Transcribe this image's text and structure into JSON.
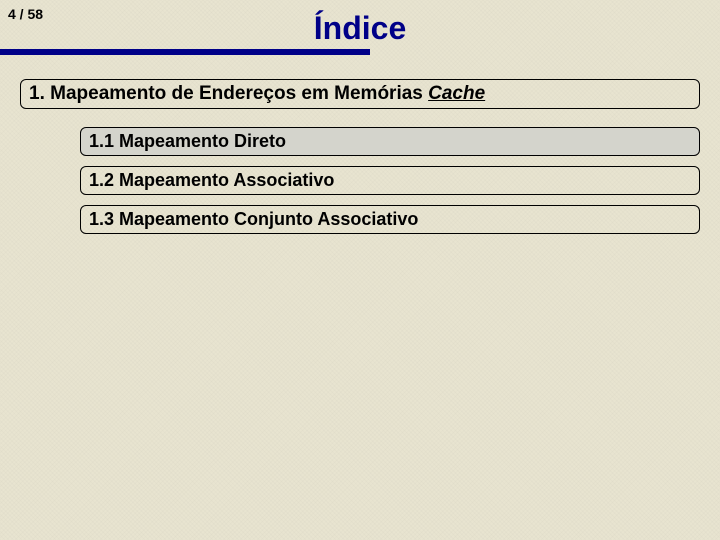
{
  "page": {
    "current": 4,
    "total": 58,
    "separator": " / "
  },
  "title": "Índice",
  "colors": {
    "accent": "#000088",
    "background": "#e8e4d0",
    "highlight": "#d4d4cc",
    "border": "#000000"
  },
  "toc": {
    "main": {
      "prefix": "1. Mapeamento de Endereços em Memórias ",
      "emph": "Cache"
    },
    "items": [
      {
        "label": "1.1 Mapeamento Direto",
        "highlight": true
      },
      {
        "label": "1.2 Mapeamento Associativo",
        "highlight": false
      },
      {
        "label": "1.3 Mapeamento Conjunto Associativo",
        "highlight": false
      }
    ]
  }
}
